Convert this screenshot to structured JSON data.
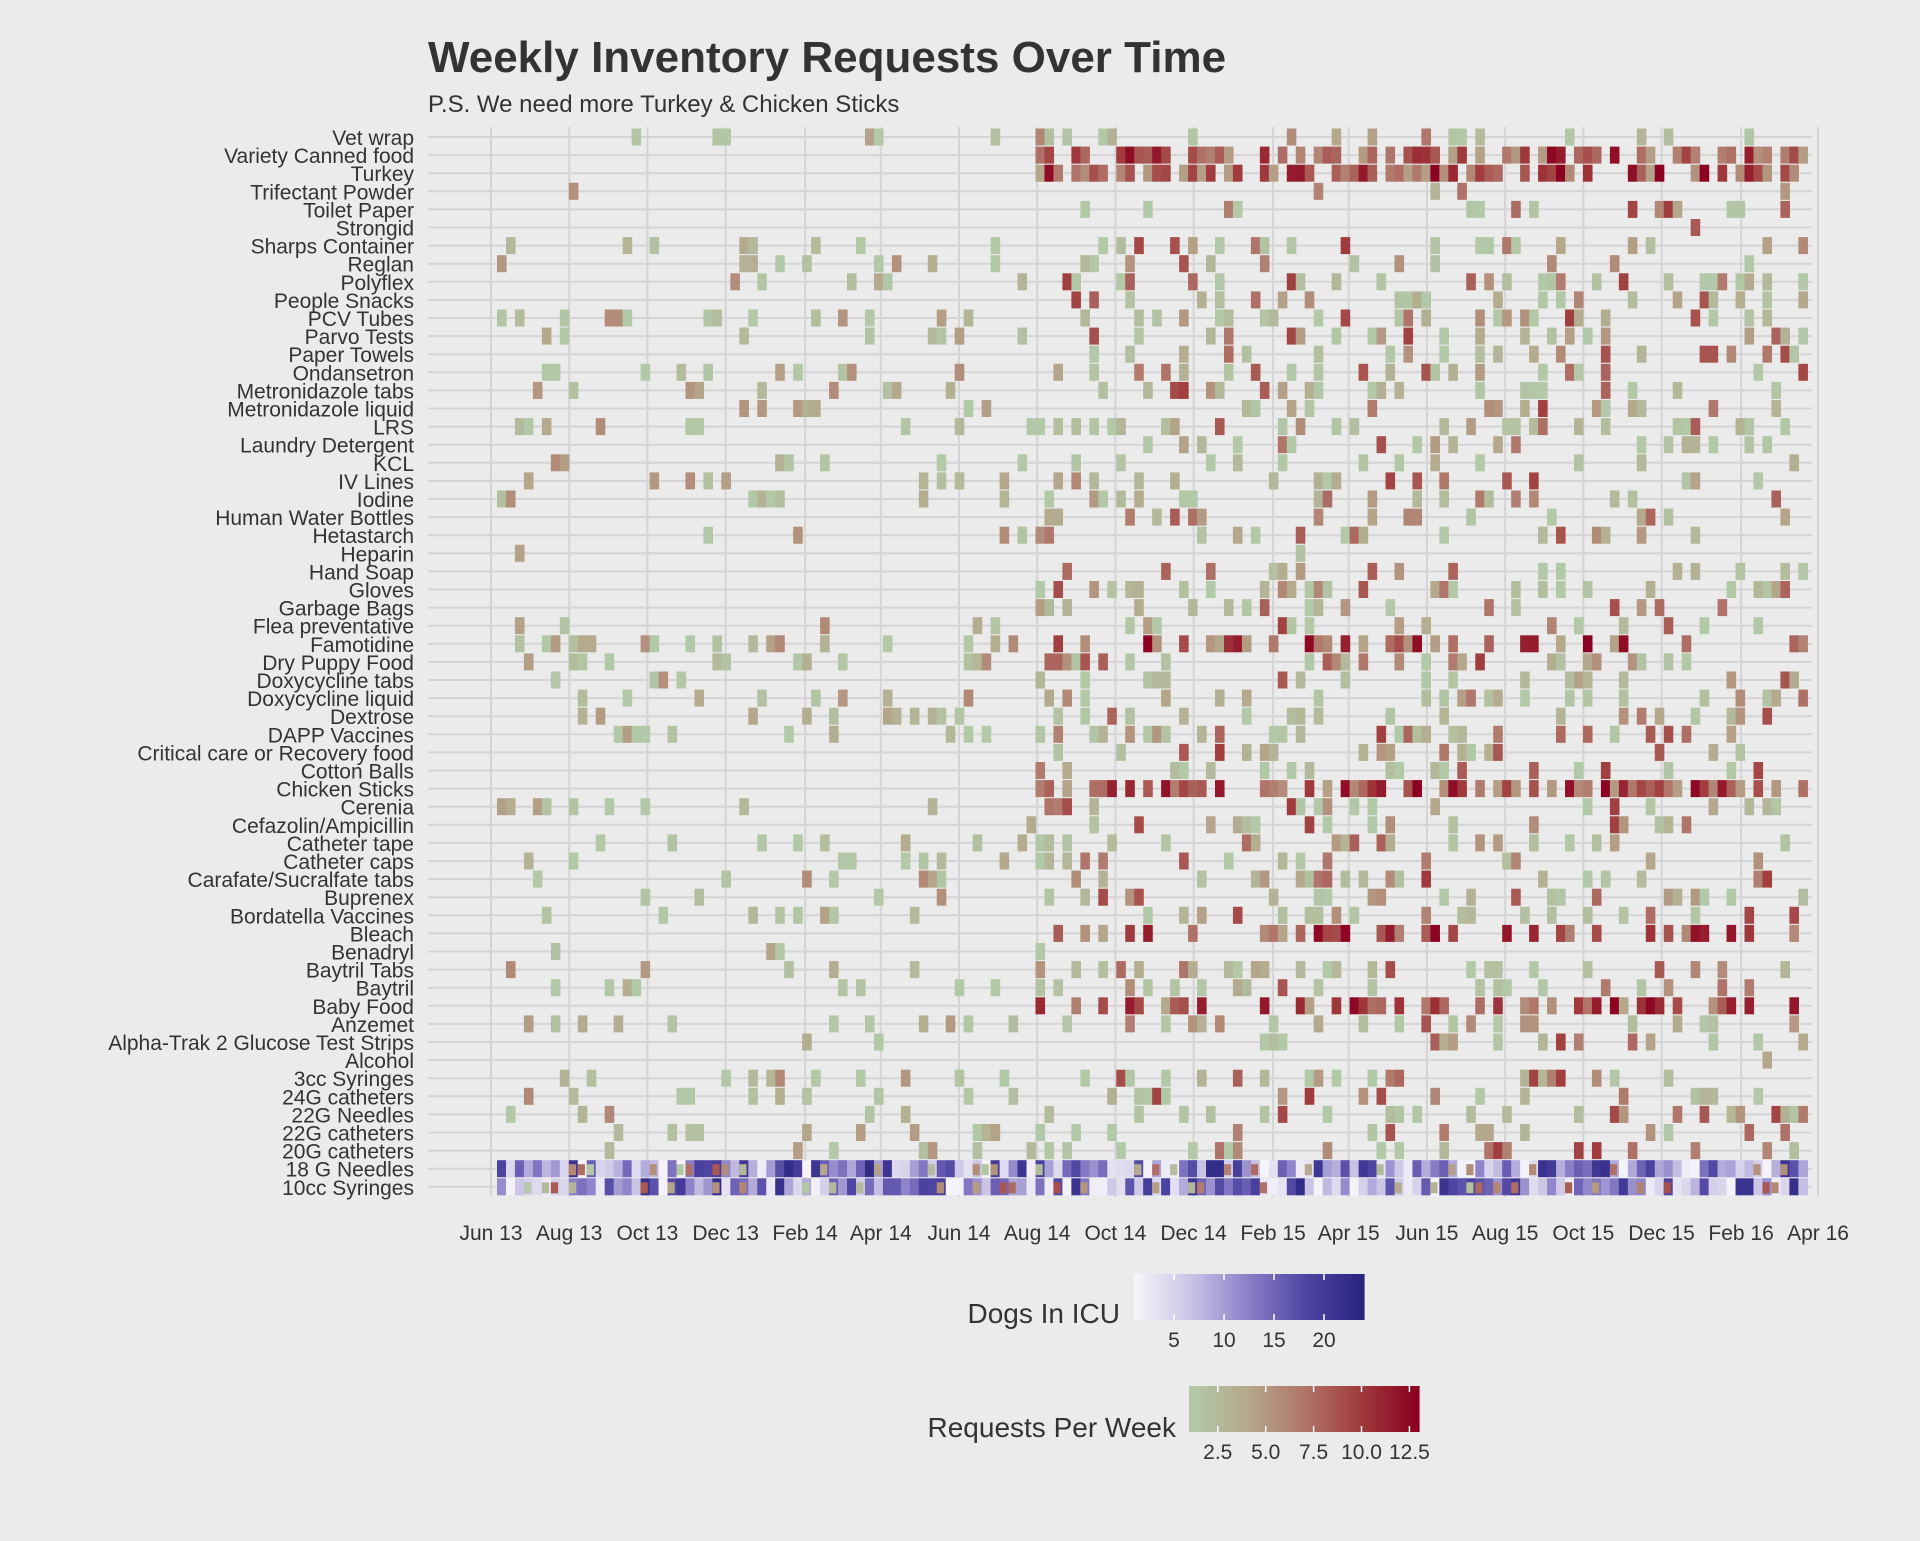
{
  "chart_data": {
    "type": "heatmap",
    "title": "Weekly Inventory Requests Over Time",
    "subtitle": "P.S. We need more Turkey & Chicken Sticks",
    "xlabel": "",
    "ylabel": "",
    "x_range": [
      "2013-06-01",
      "2016-04-30"
    ],
    "x_ticks": [
      "Jun 13",
      "Aug 13",
      "Oct 13",
      "Dec 13",
      "Feb 14",
      "Apr 14",
      "Jun 14",
      "Aug 14",
      "Oct 14",
      "Dec 14",
      "Feb 15",
      "Apr 15",
      "Jun 15",
      "Aug 15",
      "Oct 15",
      "Dec 15",
      "Feb 16",
      "Apr 16"
    ],
    "x_tick_dates": [
      "2013-06-01",
      "2013-08-01",
      "2013-10-01",
      "2013-12-01",
      "2014-02-01",
      "2014-04-01",
      "2014-06-01",
      "2014-08-01",
      "2014-10-01",
      "2014-12-01",
      "2015-02-01",
      "2015-04-01",
      "2015-06-01",
      "2015-08-01",
      "2015-10-01",
      "2015-12-01",
      "2016-02-01",
      "2016-04-01"
    ],
    "categories": [
      "Vet wrap",
      "Variety Canned food",
      "Turkey",
      "Trifectant Powder",
      "Toilet Paper",
      "Strongid",
      "Sharps Container",
      "Reglan",
      "Polyflex",
      "People Snacks",
      "PCV Tubes",
      "Parvo Tests",
      "Paper Towels",
      "Ondansetron",
      "Metronidazole tabs",
      "Metronidazole liquid",
      "LRS",
      "Laundry Detergent",
      "KCL",
      "IV Lines",
      "Iodine",
      "Human Water Bottles",
      "Hetastarch",
      "Heparin",
      "Hand Soap",
      "Gloves",
      "Garbage Bags",
      "Flea preventative",
      "Famotidine",
      "Dry Puppy Food",
      "Doxycycline tabs",
      "Doxycycline liquid",
      "Dextrose",
      "DAPP Vaccines",
      "Critical care or Recovery food",
      "Cotton Balls",
      "Chicken Sticks",
      "Cerenia",
      "Cefazolin/Ampicillin",
      "Catheter tape",
      "Catheter caps",
      "Carafate/Sucralfate tabs",
      "Buprenex",
      "Bordatella Vaccines",
      "Bleach",
      "Benadryl",
      "Baytril Tabs",
      "Baytril",
      "Baby Food",
      "Anzemet",
      "Alpha-Trak 2 Glucose Test Strips",
      "Alcohol",
      "3cc Syringes",
      "24G catheters",
      "22G Needles",
      "22G catheters",
      "20G catheters",
      "18 G Needles",
      "10cc Syringes"
    ],
    "series": [
      {
        "name": "Requests Per Week",
        "color_scale": [
          "#b2c9a8",
          "#b5a88c",
          "#b0756a",
          "#a03a3c",
          "#8b0020"
        ],
        "range": [
          1,
          13
        ],
        "ticks": [
          2.5,
          5.0,
          7.5,
          10.0,
          12.5
        ],
        "tick_labels": [
          "2.5",
          "5.0",
          "7.5",
          "10.0",
          "12.5"
        ]
      },
      {
        "name": "Dogs In ICU",
        "color_scale": [
          "#f6f4fa",
          "#c8c2e4",
          "#8a7ec8",
          "#4f44a2",
          "#2a2680"
        ],
        "range": [
          1,
          24
        ],
        "ticks": [
          5,
          10,
          15,
          20
        ],
        "tick_labels": [
          "5",
          "10",
          "15",
          "20"
        ]
      }
    ],
    "grid": true,
    "legend": "bottom"
  },
  "colors": {
    "background": "#ebebeb",
    "gridline": "#d4d4d4",
    "text": "#333333"
  }
}
